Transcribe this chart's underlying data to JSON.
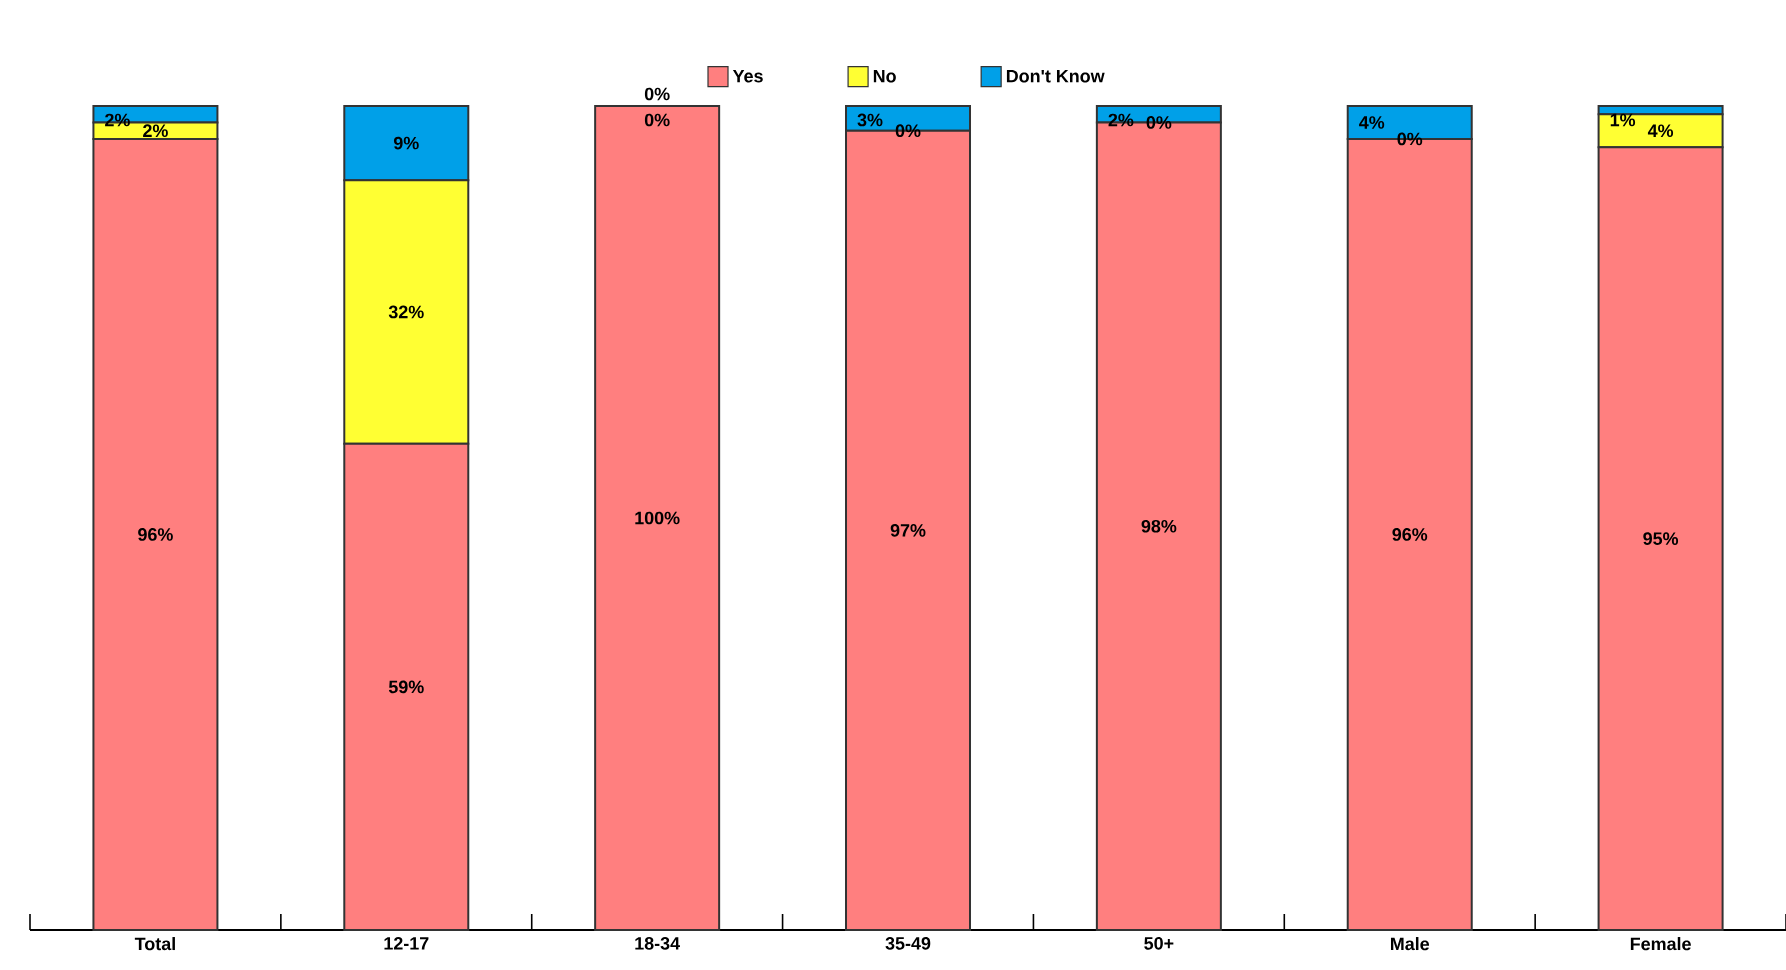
{
  "chart_data": {
    "type": "bar",
    "stacked": true,
    "categories": [
      "Total",
      "12-17",
      "18-34",
      "35-49",
      "50+",
      "Male",
      "Female"
    ],
    "series": [
      {
        "name": "Yes",
        "color": "#ff7f7f",
        "values": [
          96,
          59,
          100,
          97,
          98,
          96,
          95
        ],
        "value_labels": [
          "96%",
          "59%",
          "100%",
          "97%",
          "98%",
          "96%",
          "95%"
        ]
      },
      {
        "name": "No",
        "color": "#ffff33",
        "values": [
          2,
          32,
          0,
          0,
          0,
          0,
          4
        ],
        "value_labels": [
          "2%",
          "32%",
          "0%",
          "0%",
          "0%",
          "0%",
          "4%"
        ]
      },
      {
        "name": "Don't Know",
        "color": "#00a0e8",
        "values": [
          2,
          9,
          0,
          3,
          2,
          4,
          1
        ],
        "value_labels": [
          "2%",
          "9%",
          "0%",
          "3%",
          "2%",
          "4%",
          "1%"
        ]
      }
    ],
    "ylim": [
      0,
      100
    ],
    "tick_labels": "x",
    "legend": "top"
  }
}
